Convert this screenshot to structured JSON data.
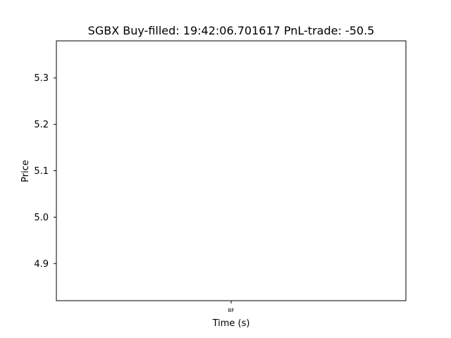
{
  "chart_data": {
    "type": "line",
    "title": "SGBX  Buy-filled:  19:42:06.701617  PnL-trade:  -50.5",
    "xlabel": "Time (s)",
    "ylabel": "Price",
    "ylim": [
      4.82,
      5.38
    ],
    "yticks": [
      4.9,
      5.0,
      5.1,
      5.2,
      5.3
    ],
    "xtick_labels": [
      "BF"
    ],
    "grid": false,
    "series": []
  }
}
